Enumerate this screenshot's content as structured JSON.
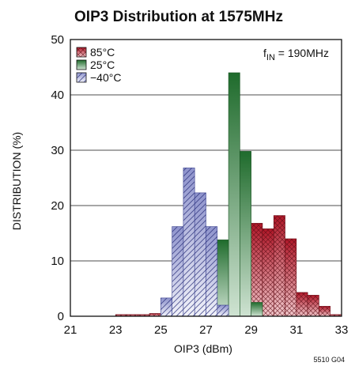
{
  "chart_data": {
    "type": "bar",
    "title": "OIP3 Distribution at 1575MHz",
    "xlabel": "OIP3 (dBm)",
    "ylabel": "DISTRIBUTION (%)",
    "xlim": [
      21,
      33
    ],
    "ylim": [
      0,
      50
    ],
    "xticks": [
      21,
      23,
      25,
      27,
      29,
      31,
      33
    ],
    "yticks": [
      0,
      10,
      20,
      30,
      40,
      50
    ],
    "bin_width": 0.5,
    "grid": true,
    "legend_position": "top-left",
    "annotation": {
      "main": "f",
      "sub": "IN",
      "rest": " = 190MHz"
    },
    "footnote": "5510 G04",
    "series": [
      {
        "name": "85°C",
        "style": "crosshatch-red",
        "color": "#b01728",
        "bins": [
          {
            "x": 23.0,
            "y": 0.3
          },
          {
            "x": 23.5,
            "y": 0.3
          },
          {
            "x": 24.0,
            "y": 0.3
          },
          {
            "x": 24.5,
            "y": 0.5
          },
          {
            "x": 25.0,
            "y": 0.5
          },
          {
            "x": 25.5,
            "y": 0.5
          },
          {
            "x": 26.0,
            "y": 0.5
          },
          {
            "x": 26.5,
            "y": 1.0
          },
          {
            "x": 27.0,
            "y": 2.0
          },
          {
            "x": 27.5,
            "y": 4.0
          },
          {
            "x": 28.0,
            "y": 8.5
          },
          {
            "x": 28.5,
            "y": 12.5
          },
          {
            "x": 29.0,
            "y": 16.8
          },
          {
            "x": 29.5,
            "y": 15.8
          },
          {
            "x": 30.0,
            "y": 18.2
          },
          {
            "x": 30.5,
            "y": 14.0
          },
          {
            "x": 31.0,
            "y": 4.3
          },
          {
            "x": 31.5,
            "y": 3.8
          },
          {
            "x": 32.0,
            "y": 1.8
          },
          {
            "x": 32.5,
            "y": 0.3
          }
        ]
      },
      {
        "name": "25°C",
        "style": "solid-green",
        "color": "#2e7a3a",
        "bins": [
          {
            "x": 26.5,
            "y": 3.5
          },
          {
            "x": 27.0,
            "y": 6.8
          },
          {
            "x": 27.5,
            "y": 13.8
          },
          {
            "x": 28.0,
            "y": 44.0
          },
          {
            "x": 28.5,
            "y": 29.8
          },
          {
            "x": 29.0,
            "y": 2.5
          }
        ]
      },
      {
        "name": "−40°C",
        "style": "diagonal-blue",
        "color": "#5a62b6",
        "bins": [
          {
            "x": 25.0,
            "y": 3.3
          },
          {
            "x": 25.5,
            "y": 16.2
          },
          {
            "x": 26.0,
            "y": 26.8
          },
          {
            "x": 26.5,
            "y": 22.3
          },
          {
            "x": 27.0,
            "y": 16.2
          },
          {
            "x": 27.5,
            "y": 2.0
          }
        ]
      }
    ]
  }
}
